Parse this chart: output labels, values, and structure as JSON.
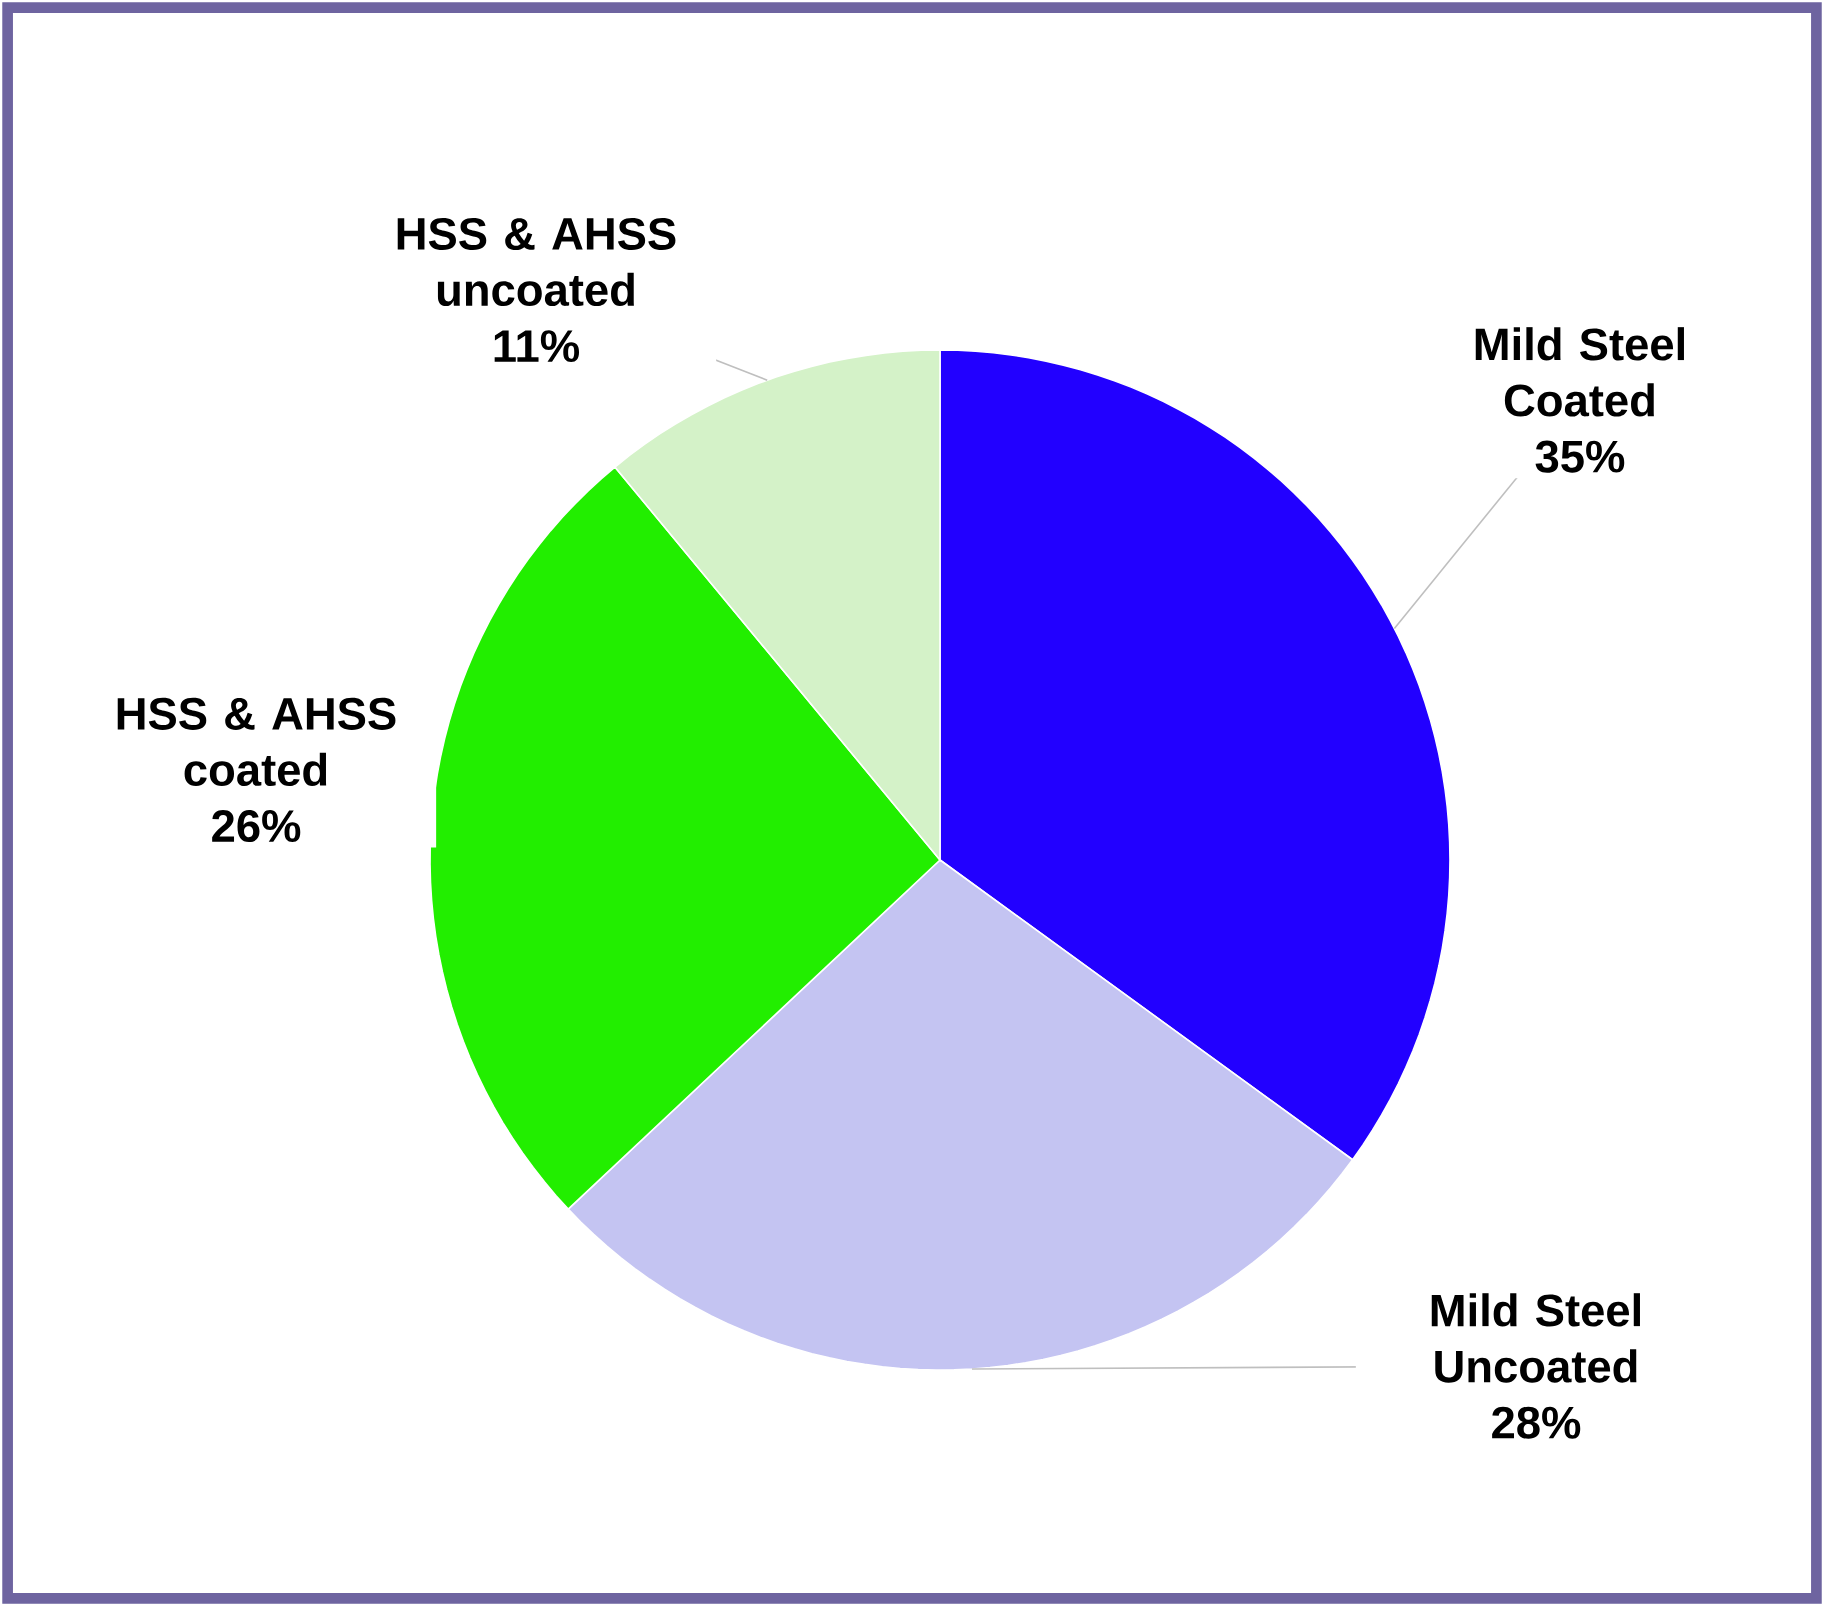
{
  "chart_data": {
    "type": "pie",
    "categories": [
      "Mild Steel Coated",
      "Mild Steel Uncoated",
      "HSS & AHSS coated",
      "HSS & AHSS uncoated"
    ],
    "values": [
      35,
      28,
      26,
      11
    ],
    "colors": [
      "#2200ff",
      "#c4c4f2",
      "#22ee00",
      "#d4f2c8"
    ],
    "value_labels": [
      "35%",
      "28%",
      "26%",
      "11%"
    ]
  }
}
